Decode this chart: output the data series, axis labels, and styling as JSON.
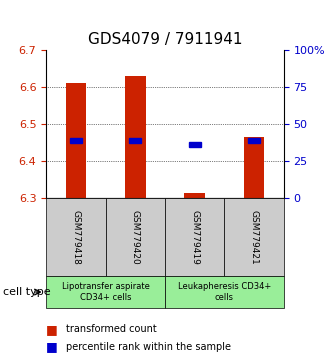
{
  "title": "GDS4079 / 7911941",
  "samples": [
    "GSM779418",
    "GSM779420",
    "GSM779419",
    "GSM779421"
  ],
  "y_min": 6.3,
  "y_max": 6.7,
  "y_ticks": [
    6.3,
    6.4,
    6.5,
    6.6,
    6.7
  ],
  "right_ticks": [
    0,
    25,
    50,
    75,
    100
  ],
  "right_tick_labels": [
    "0",
    "25",
    "50",
    "75",
    "100%"
  ],
  "bar_bottoms": [
    6.3,
    6.3,
    6.3,
    6.3
  ],
  "bar_tops": [
    6.61,
    6.63,
    6.315,
    6.465
  ],
  "percentile_values": [
    6.455,
    6.455,
    6.445,
    6.455
  ],
  "bar_color": "#cc2200",
  "percentile_color": "#0000cc",
  "group1_label": "Lipotransfer aspirate\nCD34+ cells",
  "group2_label": "Leukapheresis CD34+\ncells",
  "group1_color": "#cccccc",
  "group2_color": "#99ee99",
  "cell_type_label": "cell type",
  "legend_red_label": "transformed count",
  "legend_blue_label": "percentile rank within the sample",
  "title_fontsize": 11,
  "tick_fontsize": 8,
  "label_fontsize": 8
}
